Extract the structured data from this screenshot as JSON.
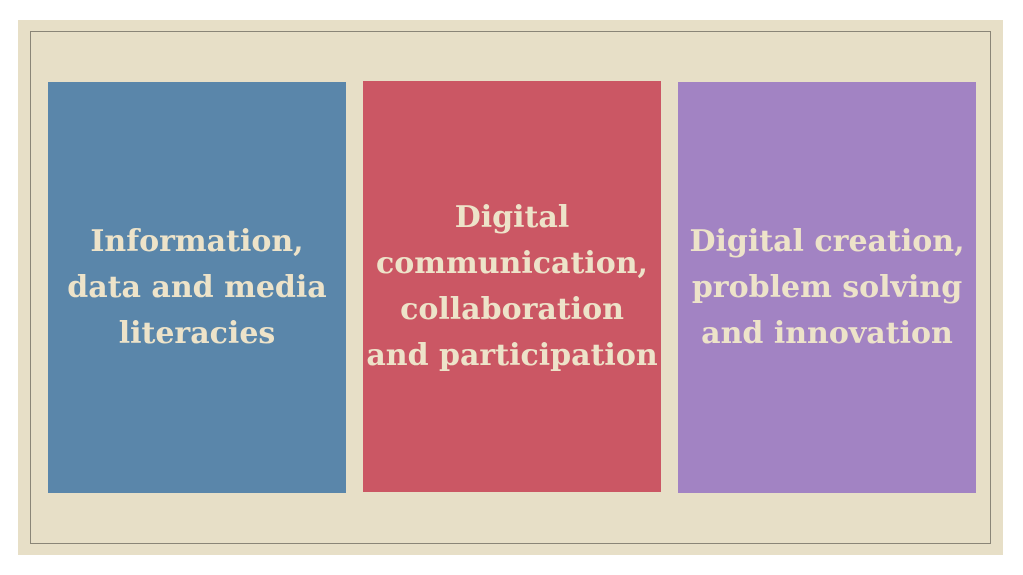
{
  "panels": [
    {
      "lines": [
        "Information,",
        "data and media",
        "literacies"
      ],
      "color": "#5a86aa"
    },
    {
      "lines": [
        "Digital",
        "communication,",
        "collaboration",
        "and participation"
      ],
      "color": "#cb5764"
    },
    {
      "lines": [
        "Digital creation,",
        "problem solving",
        "and innovation"
      ],
      "color": "#a283c3"
    }
  ],
  "colors": {
    "background": "#e7dfc7",
    "text": "#ede3c9",
    "frame": "#8a8577"
  }
}
